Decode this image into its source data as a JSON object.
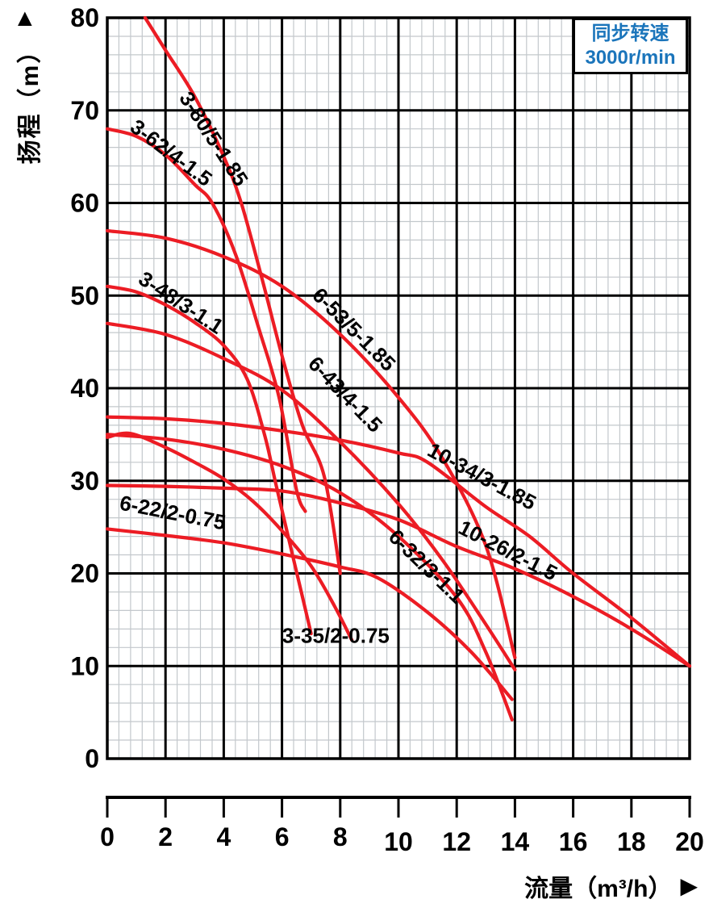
{
  "chart_data": {
    "type": "line",
    "title": "",
    "xlabel": "流量（m³/h）",
    "ylabel": "扬程（m）",
    "y_axis_arrow": "▲",
    "x_axis_arrow": "▶",
    "xlim": [
      0,
      20
    ],
    "ylim": [
      0,
      80
    ],
    "x_ticks": [
      0,
      2,
      4,
      6,
      8,
      10,
      12,
      14,
      16,
      18,
      20
    ],
    "y_ticks": [
      0,
      10,
      20,
      30,
      40,
      50,
      60,
      70,
      80
    ],
    "x_minor_step": 0.4,
    "y_minor_step": 2,
    "grid": true,
    "legend": {
      "line1": "同步转速",
      "line2": "3000r/min",
      "position": "top-right",
      "text_color": "#1b75bb"
    },
    "colors": {
      "curve": "#ec1c24",
      "major_grid": "#000000",
      "minor_grid": "#c3c8cc",
      "text": "#000000"
    },
    "series": [
      {
        "name": "3-80/5-1.85",
        "label_at": [
          3.45,
          66.5
        ],
        "label_angle": 57,
        "points": [
          [
            1.3,
            80
          ],
          [
            2,
            76.5
          ],
          [
            3,
            71.5
          ],
          [
            4,
            65
          ],
          [
            4.6,
            60
          ],
          [
            5.3,
            52
          ],
          [
            6,
            43.5
          ],
          [
            6.7,
            36
          ],
          [
            7.45,
            30.5
          ],
          [
            8,
            20
          ]
        ]
      },
      {
        "name": "3-62/4-1.5",
        "label_at": [
          2.05,
          64.8
        ],
        "label_angle": 37,
        "points": [
          [
            0,
            68
          ],
          [
            1,
            67.2
          ],
          [
            2,
            65.2
          ],
          [
            3,
            62
          ],
          [
            3.6,
            60
          ],
          [
            4.4,
            54.5
          ],
          [
            5.2,
            46.5
          ],
          [
            5.9,
            39
          ],
          [
            6.5,
            29
          ],
          [
            6.8,
            26.7
          ]
        ]
      },
      {
        "name": "3-48/3-1.1",
        "label_at": [
          2.4,
          48.6
        ],
        "label_angle": 33,
        "points": [
          [
            0,
            51
          ],
          [
            1,
            50.4
          ],
          [
            2,
            49
          ],
          [
            3,
            47.1
          ],
          [
            4,
            44.6
          ],
          [
            4.8,
            41
          ],
          [
            5.4,
            35
          ],
          [
            5.8,
            29.5
          ],
          [
            6.4,
            21.5
          ],
          [
            7,
            13.5
          ]
        ]
      },
      {
        "name": "3-35/2-0.75",
        "label_at": [
          7.85,
          12.5
        ],
        "label_angle": 0,
        "points": [
          [
            0,
            34.7
          ],
          [
            0.8,
            35.1
          ],
          [
            2,
            33.6
          ],
          [
            3,
            32
          ],
          [
            4,
            30.2
          ],
          [
            5,
            27.8
          ],
          [
            6,
            24.6
          ],
          [
            7,
            20.8
          ],
          [
            7.8,
            16.5
          ],
          [
            8.4,
            12.8
          ]
        ]
      },
      {
        "name": "6-53/5-1.85",
        "label_at": [
          8.3,
          45.8
        ],
        "label_angle": 45,
        "points": [
          [
            0,
            57
          ],
          [
            2,
            56.2
          ],
          [
            4,
            54.2
          ],
          [
            6,
            51
          ],
          [
            8,
            45.8
          ],
          [
            10,
            39
          ],
          [
            11.5,
            32.5
          ],
          [
            13,
            23
          ],
          [
            14,
            10.9
          ]
        ]
      },
      {
        "name": "6-43/4-1.5",
        "label_at": [
          8.0,
          38.8
        ],
        "label_angle": 46,
        "points": [
          [
            0,
            47
          ],
          [
            2,
            45.8
          ],
          [
            4,
            43.2
          ],
          [
            6,
            39.8
          ],
          [
            8,
            34.2
          ],
          [
            10,
            27.5
          ],
          [
            11.5,
            21.5
          ],
          [
            13,
            14.5
          ],
          [
            14,
            9.6
          ]
        ]
      },
      {
        "name": "6-32/3-1.1",
        "label_at": [
          10.8,
          20.2
        ],
        "label_angle": 44,
        "points": [
          [
            0,
            35
          ],
          [
            2,
            34.5
          ],
          [
            4,
            33.4
          ],
          [
            6,
            31.6
          ],
          [
            8,
            28.7
          ],
          [
            10,
            24
          ],
          [
            12,
            17.4
          ],
          [
            13,
            11.5
          ],
          [
            13.9,
            4.2
          ]
        ]
      },
      {
        "name": "6-22/2-0.75",
        "label_at": [
          2.2,
          25.8
        ],
        "label_angle": 11,
        "points": [
          [
            0,
            24.8
          ],
          [
            2,
            24.1
          ],
          [
            4,
            23.3
          ],
          [
            6,
            22.1
          ],
          [
            8,
            20.7
          ],
          [
            9.3,
            19.5
          ],
          [
            11,
            15.8
          ],
          [
            12.5,
            11.5
          ],
          [
            13.9,
            6.4
          ]
        ]
      },
      {
        "name": "10-34/3-1.85",
        "label_at": [
          12.75,
          29.8
        ],
        "label_angle": 28,
        "points": [
          [
            0,
            36.9
          ],
          [
            2,
            36.7
          ],
          [
            4,
            36.2
          ],
          [
            6,
            35.4
          ],
          [
            8,
            34.4
          ],
          [
            10,
            33
          ],
          [
            11,
            32
          ],
          [
            13,
            27.2
          ],
          [
            14.5,
            24
          ],
          [
            16,
            20
          ],
          [
            18,
            15.2
          ],
          [
            20,
            10
          ]
        ]
      },
      {
        "name": "10-26/2-1.5",
        "label_at": [
          13.65,
          21.8
        ],
        "label_angle": 27,
        "points": [
          [
            0,
            29.5
          ],
          [
            2,
            29.4
          ],
          [
            4,
            29.2
          ],
          [
            6,
            28.9
          ],
          [
            8,
            27.6
          ],
          [
            10,
            25.8
          ],
          [
            12,
            22.9
          ],
          [
            14,
            20.5
          ],
          [
            16,
            17.5
          ],
          [
            18,
            14
          ],
          [
            20,
            10
          ]
        ]
      }
    ]
  }
}
